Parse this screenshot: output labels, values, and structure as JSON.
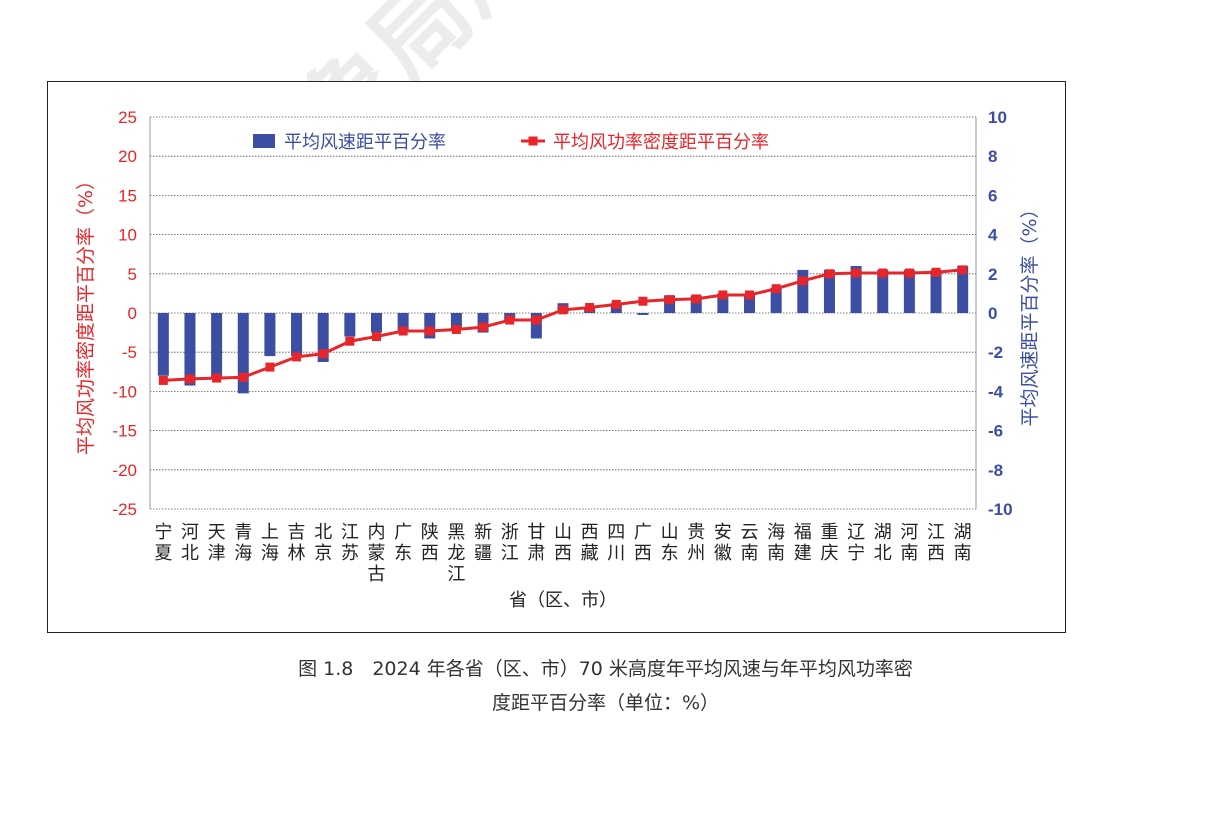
{
  "watermark": "中国气象局风能",
  "caption": {
    "line1": "图 1.8　2024 年各省（区、市）70 米高度年平均风速与年平均风功率密",
    "line2": "度距平百分率（单位：%）"
  },
  "colors": {
    "bar": "#3b4ea3",
    "line": "#e8262a",
    "left_axis": "#e8262a",
    "right_axis": "#3b4ea3",
    "grid": "#555555"
  },
  "chart_data": {
    "type": "bar+line",
    "categories": [
      "宁夏",
      "河北",
      "天津",
      "青海",
      "上海",
      "吉林",
      "北京",
      "江苏",
      "内蒙古",
      "广东",
      "陕西",
      "黑龙江",
      "新疆",
      "浙江",
      "甘肃",
      "山西",
      "西藏",
      "四川",
      "广西",
      "山东",
      "贵州",
      "安徽",
      "云南",
      "海南",
      "福建",
      "重庆",
      "辽宁",
      "湖北",
      "河南",
      "江西",
      "湖南"
    ],
    "series": [
      {
        "name": "平均风速距平百分率",
        "kind": "bar",
        "axis": "right",
        "values": [
          -3.2,
          -3.7,
          -3.3,
          -4.1,
          -2.2,
          -2.2,
          -2.5,
          -1.2,
          -1.0,
          -0.9,
          -1.3,
          -0.8,
          -1.0,
          -0.4,
          -1.3,
          0.5,
          0.3,
          0.5,
          -0.1,
          0.9,
          0.9,
          1.0,
          0.9,
          1.3,
          2.2,
          2.2,
          2.4,
          2.2,
          2.2,
          2.2,
          2.4
        ]
      },
      {
        "name": "平均风功率密度距平百分率",
        "kind": "line",
        "axis": "left",
        "values": [
          -8.6,
          -8.4,
          -8.3,
          -8.2,
          -6.9,
          -5.6,
          -5.2,
          -3.6,
          -3.0,
          -2.3,
          -2.3,
          -2.1,
          -1.8,
          -0.9,
          -0.9,
          0.4,
          0.7,
          1.1,
          1.5,
          1.7,
          1.8,
          2.3,
          2.3,
          3.1,
          4.1,
          5.0,
          5.1,
          5.1,
          5.1,
          5.2,
          5.5
        ]
      }
    ],
    "xlabel": "省（区、市）",
    "ylabel_left": "平均风功率密度距平百分率（%）",
    "ylabel_right": "平均风速距平百分率（%）",
    "ylim_left": [
      -25,
      25
    ],
    "yticks_left": [
      25,
      20,
      15,
      10,
      5,
      0,
      -5,
      -10,
      -15,
      -20,
      -25
    ],
    "ylim_right": [
      -10,
      10
    ],
    "yticks_right": [
      10,
      8,
      6,
      4,
      2,
      0,
      -2,
      -4,
      -6,
      -8,
      -10
    ],
    "grid": true,
    "legend_position": "top"
  }
}
